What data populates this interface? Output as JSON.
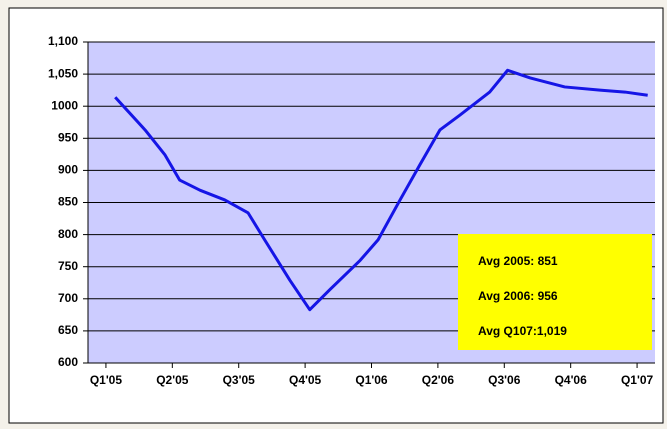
{
  "chart_data": {
    "type": "line",
    "x": [
      0.14,
      0.59,
      0.89,
      1.11,
      1.42,
      1.79,
      2.14,
      2.39,
      2.77,
      3.07,
      3.37,
      3.83,
      4.1,
      4.43,
      4.73,
      5.03,
      5.33,
      5.78,
      6.05,
      6.39,
      6.91,
      7.44,
      7.82,
      8.16
    ],
    "series": [
      {
        "color": "#1515e6",
        "values": [
          1014,
          963,
          924,
          885,
          869,
          854,
          834,
          792,
          729,
          683,
          714,
          760,
          792,
          854,
          909,
          963,
          986,
          1022,
          1056,
          1044,
          1030,
          1025,
          1022,
          1017
        ]
      }
    ],
    "xlim": [
      -0.27,
      8.27
    ],
    "xticks": [
      {
        "value": 0,
        "label": "Q1'05"
      },
      {
        "value": 1,
        "label": "Q2'05"
      },
      {
        "value": 2,
        "label": "Q3'05"
      },
      {
        "value": 3,
        "label": "Q4'05"
      },
      {
        "value": 4,
        "label": "Q1'06"
      },
      {
        "value": 5,
        "label": "Q2'06"
      },
      {
        "value": 6,
        "label": "Q3'06"
      },
      {
        "value": 7,
        "label": "Q4'06"
      },
      {
        "value": 8,
        "label": "Q1'07"
      }
    ],
    "ylim": [
      600,
      1100
    ],
    "yticks": [
      600,
      650,
      700,
      750,
      800,
      850,
      900,
      950,
      1000,
      {
        "value": 1050,
        "label": "1,050"
      },
      {
        "value": 1100,
        "label": "1,100"
      }
    ],
    "grid": true,
    "annotations": [
      "Avg 2005: 851",
      "Avg 2006: 956",
      "Avg Q107:1,019"
    ]
  }
}
